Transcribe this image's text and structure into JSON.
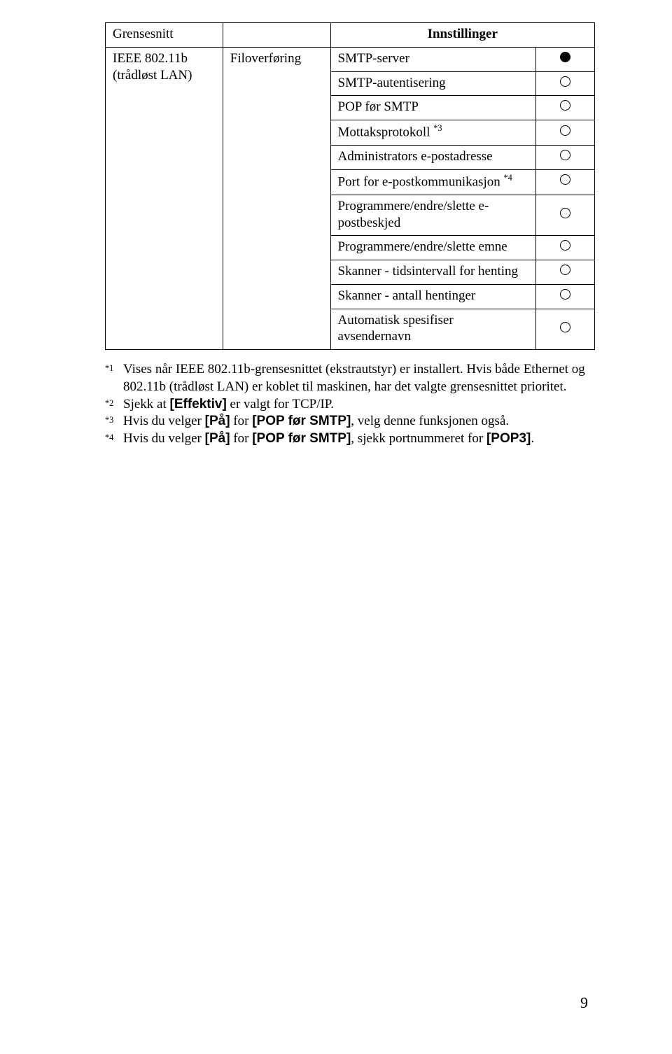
{
  "table": {
    "header_col1": "Grensesnitt",
    "header_col34": "Innstillinger",
    "iface": "IEEE 802.11b\n(trådløst LAN)",
    "group": "Filoverføring",
    "rows": [
      {
        "label": "SMTP-server",
        "icon": "filled"
      },
      {
        "label": "SMTP-autentisering",
        "icon": "open"
      },
      {
        "label": "POP før SMTP",
        "icon": "open"
      },
      {
        "label": "Mottaksprotokoll ",
        "sup": "*3",
        "icon": "open"
      },
      {
        "label": "Administrators e-postadresse",
        "icon": "open"
      },
      {
        "label": "Port for e-postkommunikasjon ",
        "sup": "*4",
        "icon": "open"
      },
      {
        "label": "Programmere/endre/slette e-postbeskjed",
        "icon": "open"
      },
      {
        "label": "Programmere/endre/slette emne",
        "icon": "open"
      },
      {
        "label": "Skanner - tidsintervall for henting",
        "icon": "open"
      },
      {
        "label": "Skanner - antall hentinger",
        "icon": "open"
      },
      {
        "label": "Automatisk spesifiser avsendernavn",
        "icon": "open"
      }
    ]
  },
  "footnotes": {
    "items": [
      {
        "mark": "*1",
        "segments": [
          {
            "t": "Vises når IEEE 802.11b-grensesnittet (ekstrautstyr) er installert. Hvis både Ethernet og 802.11b (trådløst LAN) er koblet til maskinen, har det valgte grensesnittet prioritet."
          }
        ]
      },
      {
        "mark": "*2",
        "segments": [
          {
            "t": "Sjekk at "
          },
          {
            "b": "[Effektiv]"
          },
          {
            "t": " er valgt for TCP/IP."
          }
        ]
      },
      {
        "mark": "*3",
        "segments": [
          {
            "t": "Hvis du velger "
          },
          {
            "b": "[På]"
          },
          {
            "t": " for "
          },
          {
            "b": "[POP før SMTP]"
          },
          {
            "t": ", velg denne funksjonen også."
          }
        ]
      },
      {
        "mark": "*4",
        "segments": [
          {
            "t": "Hvis du velger "
          },
          {
            "b": "[På]"
          },
          {
            "t": " for "
          },
          {
            "b": "[POP før SMTP]"
          },
          {
            "t": ", sjekk portnummeret for "
          },
          {
            "b": "[POP3]"
          },
          {
            "t": "."
          }
        ]
      }
    ]
  },
  "page_number": "9"
}
